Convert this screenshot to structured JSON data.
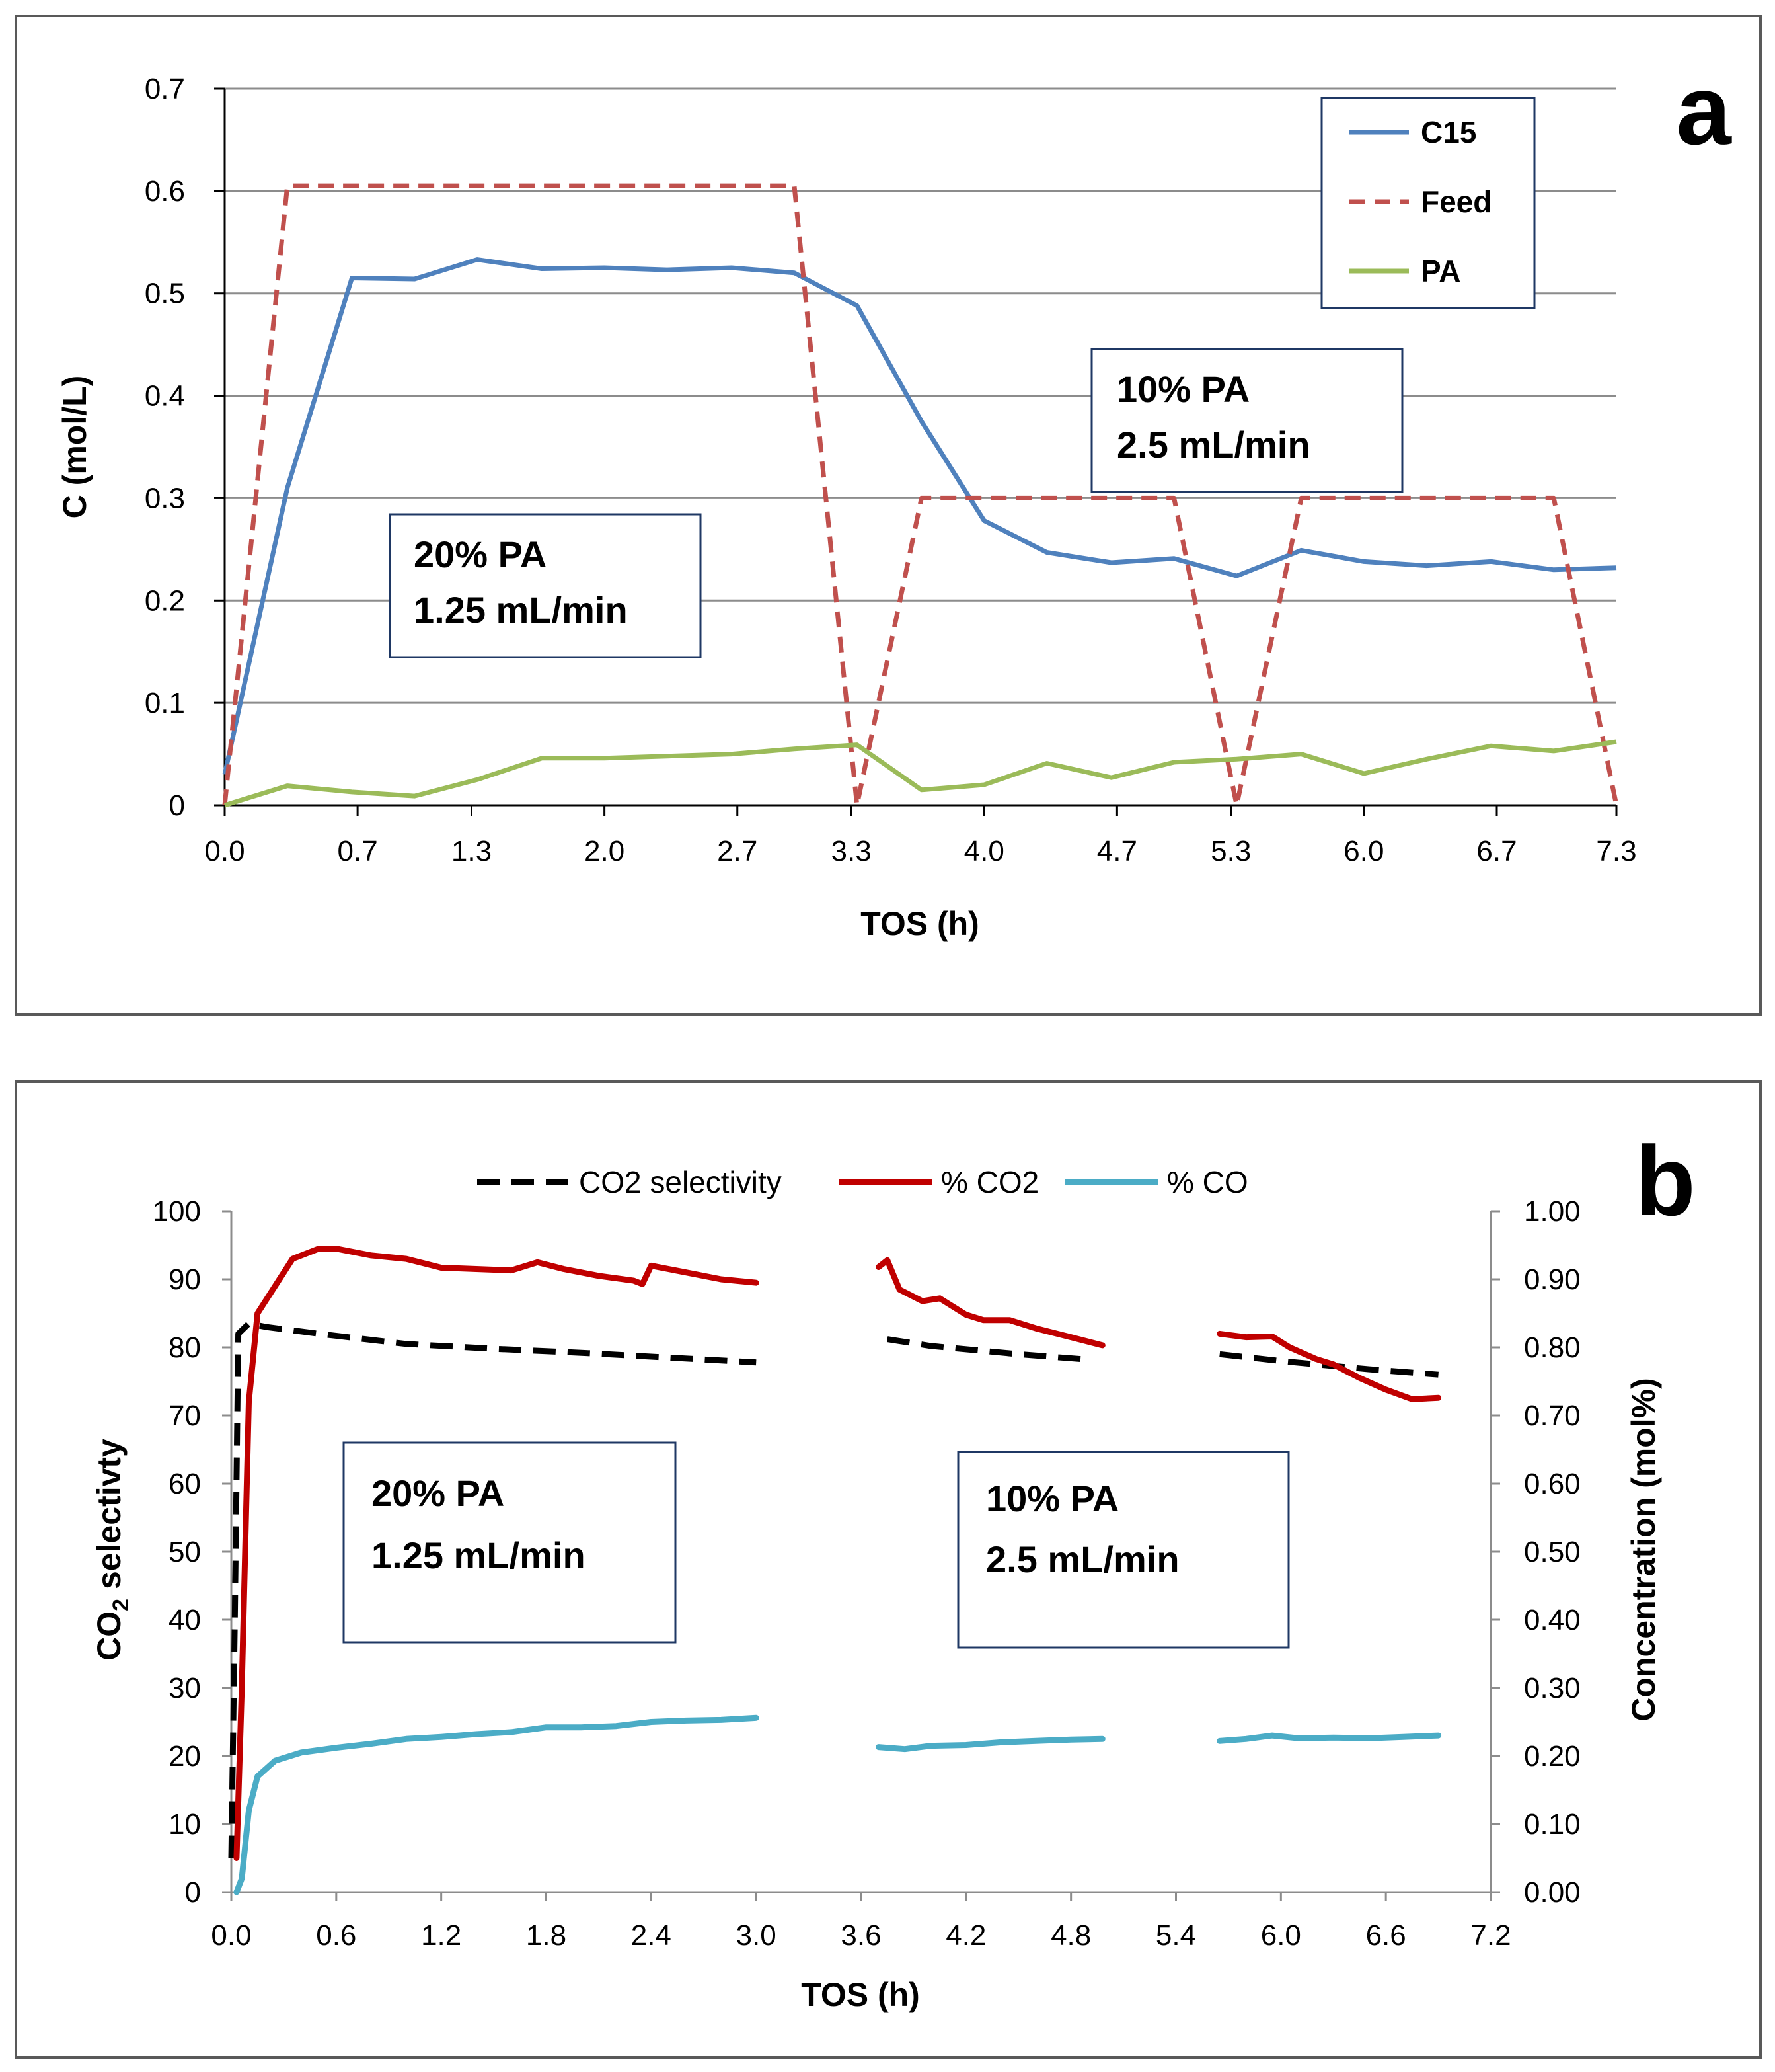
{
  "chart_data": [
    {
      "panel": "a",
      "type": "line",
      "xlabel": "TOS (h)",
      "ylabel": "C (mol/L)",
      "xlim": [
        0,
        7.33
      ],
      "ylim": [
        0,
        0.7
      ],
      "x_ticks": [
        "0.0",
        "0.7",
        "1.3",
        "2.0",
        "2.7",
        "3.3",
        "4.0",
        "4.7",
        "5.3",
        "6.0",
        "6.7",
        "7.3"
      ],
      "y_ticks": [
        "0",
        "0.1",
        "0.2",
        "0.3",
        "0.4",
        "0.5",
        "0.6",
        "0.7"
      ],
      "grid": "horizontal",
      "legend_position": "top-right",
      "series": [
        {
          "name": "C15",
          "color": "#4F81BD",
          "style": "solid",
          "points": [
            [
              0,
              0.03
            ],
            [
              0.33,
              0.31
            ],
            [
              0.67,
              0.515
            ],
            [
              1.0,
              0.514
            ],
            [
              1.33,
              0.533
            ],
            [
              1.67,
              0.524
            ],
            [
              2.0,
              0.525
            ],
            [
              2.33,
              0.523
            ],
            [
              2.67,
              0.525
            ],
            [
              3.0,
              0.52
            ],
            [
              3.33,
              0.488
            ],
            [
              3.67,
              0.375
            ],
            [
              4.0,
              0.278
            ],
            [
              4.33,
              0.247
            ],
            [
              4.67,
              0.237
            ],
            [
              5.0,
              0.241
            ],
            [
              5.33,
              0.224
            ],
            [
              5.67,
              0.249
            ],
            [
              6.0,
              0.238
            ],
            [
              6.33,
              0.234
            ],
            [
              6.67,
              0.238
            ],
            [
              7.0,
              0.23
            ],
            [
              7.33,
              0.232
            ]
          ]
        },
        {
          "name": "Feed",
          "color": "#C0504D",
          "style": "dashed",
          "points": [
            [
              0,
              0
            ],
            [
              0.33,
              0.605
            ],
            [
              3.0,
              0.605
            ],
            [
              3.33,
              0
            ],
            [
              3.67,
              0.3
            ],
            [
              5.0,
              0.3
            ],
            [
              5.33,
              0
            ],
            [
              5.67,
              0.3
            ],
            [
              7.0,
              0.3
            ],
            [
              7.33,
              0
            ]
          ]
        },
        {
          "name": "PA",
          "color": "#9BBB59",
          "style": "solid",
          "points": [
            [
              0,
              0.0
            ],
            [
              0.33,
              0.019
            ],
            [
              0.67,
              0.013
            ],
            [
              1.0,
              0.009
            ],
            [
              1.33,
              0.025
            ],
            [
              1.67,
              0.046
            ],
            [
              2.0,
              0.046
            ],
            [
              2.33,
              0.048
            ],
            [
              2.67,
              0.05
            ],
            [
              3.0,
              0.055
            ],
            [
              3.33,
              0.059
            ],
            [
              3.67,
              0.015
            ],
            [
              4.0,
              0.02
            ],
            [
              4.33,
              0.041
            ],
            [
              4.67,
              0.027
            ],
            [
              5.0,
              0.042
            ],
            [
              5.33,
              0.045
            ],
            [
              5.67,
              0.05
            ],
            [
              6.0,
              0.031
            ],
            [
              6.33,
              0.045
            ],
            [
              6.67,
              0.058
            ],
            [
              7.0,
              0.053
            ],
            [
              7.33,
              0.062
            ]
          ]
        }
      ],
      "annotations": [
        {
          "lines": [
            "20% PA",
            "1.25 mL/min"
          ]
        },
        {
          "lines": [
            "10% PA",
            "2.5 mL/min"
          ]
        }
      ]
    },
    {
      "panel": "b",
      "type": "line",
      "xlabel": "TOS (h)",
      "ylabel_left": "CO2 selectivty",
      "ylabel_right": "Concentration (mol%)",
      "xlim": [
        0,
        7.2
      ],
      "ylim_left": [
        0,
        100
      ],
      "ylim_right": [
        0,
        1.0
      ],
      "x_ticks": [
        "0.0",
        "0.6",
        "1.2",
        "1.8",
        "2.4",
        "3.0",
        "3.6",
        "4.2",
        "4.8",
        "5.4",
        "6.0",
        "6.6",
        "7.2"
      ],
      "y_ticks_left": [
        "0",
        "10",
        "20",
        "30",
        "40",
        "50",
        "60",
        "70",
        "80",
        "90",
        "100"
      ],
      "y_ticks_right": [
        "0.00",
        "0.10",
        "0.20",
        "0.30",
        "0.40",
        "0.50",
        "0.60",
        "0.70",
        "0.80",
        "0.90",
        "1.00"
      ],
      "grid": "none",
      "legend_position": "top",
      "series": [
        {
          "name": "CO2 selectivity",
          "axis": "left",
          "color": "#000000",
          "style": "dashed",
          "segments": [
            [
              [
                0.0,
                5
              ],
              [
                0.02,
                40
              ],
              [
                0.04,
                82
              ],
              [
                0.1,
                83.5
              ],
              [
                0.2,
                83
              ],
              [
                0.5,
                82
              ],
              [
                1.0,
                80.5
              ],
              [
                1.5,
                79.8
              ],
              [
                2.0,
                79.2
              ],
              [
                2.5,
                78.5
              ],
              [
                3.0,
                77.8
              ]
            ],
            [
              [
                3.75,
                81.2
              ],
              [
                4.0,
                80.2
              ],
              [
                4.5,
                79.0
              ],
              [
                4.9,
                78.2
              ]
            ],
            [
              [
                5.65,
                79.0
              ],
              [
                6.0,
                78.0
              ],
              [
                6.5,
                76.8
              ],
              [
                6.9,
                76.0
              ]
            ]
          ]
        },
        {
          "name": "% CO2",
          "axis": "right",
          "color": "#C00000",
          "style": "solid",
          "segments": [
            [
              [
                0.03,
                0.05
              ],
              [
                0.06,
                0.3
              ],
              [
                0.1,
                0.72
              ],
              [
                0.15,
                0.85
              ],
              [
                0.25,
                0.89
              ],
              [
                0.35,
                0.93
              ],
              [
                0.5,
                0.945
              ],
              [
                0.6,
                0.945
              ],
              [
                0.8,
                0.935
              ],
              [
                1.0,
                0.93
              ],
              [
                1.2,
                0.917
              ],
              [
                1.4,
                0.915
              ],
              [
                1.6,
                0.913
              ],
              [
                1.75,
                0.925
              ],
              [
                1.9,
                0.915
              ],
              [
                2.1,
                0.905
              ],
              [
                2.3,
                0.898
              ],
              [
                2.35,
                0.893
              ],
              [
                2.4,
                0.92
              ],
              [
                2.6,
                0.91
              ],
              [
                2.8,
                0.9
              ],
              [
                3.0,
                0.895
              ]
            ],
            [
              [
                3.7,
                0.918
              ],
              [
                3.75,
                0.928
              ],
              [
                3.82,
                0.885
              ],
              [
                3.95,
                0.868
              ],
              [
                4.05,
                0.872
              ],
              [
                4.2,
                0.848
              ],
              [
                4.3,
                0.84
              ],
              [
                4.45,
                0.84
              ],
              [
                4.6,
                0.828
              ],
              [
                4.8,
                0.815
              ],
              [
                4.98,
                0.803
              ]
            ],
            [
              [
                5.65,
                0.82
              ],
              [
                5.8,
                0.815
              ],
              [
                5.95,
                0.816
              ],
              [
                6.05,
                0.8
              ],
              [
                6.2,
                0.783
              ],
              [
                6.3,
                0.775
              ],
              [
                6.45,
                0.755
              ],
              [
                6.6,
                0.738
              ],
              [
                6.75,
                0.724
              ],
              [
                6.9,
                0.726
              ]
            ]
          ]
        },
        {
          "name": "% CO",
          "axis": "right",
          "color": "#4BACC6",
          "style": "solid",
          "segments": [
            [
              [
                0.03,
                0.0
              ],
              [
                0.06,
                0.02
              ],
              [
                0.1,
                0.12
              ],
              [
                0.15,
                0.17
              ],
              [
                0.25,
                0.193
              ],
              [
                0.4,
                0.205
              ],
              [
                0.6,
                0.212
              ],
              [
                0.8,
                0.218
              ],
              [
                1.0,
                0.225
              ],
              [
                1.2,
                0.228
              ],
              [
                1.4,
                0.232
              ],
              [
                1.6,
                0.235
              ],
              [
                1.8,
                0.242
              ],
              [
                2.0,
                0.242
              ],
              [
                2.2,
                0.244
              ],
              [
                2.4,
                0.25
              ],
              [
                2.6,
                0.252
              ],
              [
                2.8,
                0.253
              ],
              [
                3.0,
                0.256
              ]
            ],
            [
              [
                3.7,
                0.213
              ],
              [
                3.85,
                0.21
              ],
              [
                4.0,
                0.215
              ],
              [
                4.2,
                0.216
              ],
              [
                4.4,
                0.22
              ],
              [
                4.6,
                0.222
              ],
              [
                4.8,
                0.224
              ],
              [
                4.98,
                0.225
              ]
            ],
            [
              [
                5.65,
                0.222
              ],
              [
                5.8,
                0.225
              ],
              [
                5.95,
                0.23
              ],
              [
                6.1,
                0.226
              ],
              [
                6.3,
                0.227
              ],
              [
                6.5,
                0.226
              ],
              [
                6.7,
                0.228
              ],
              [
                6.9,
                0.23
              ]
            ]
          ]
        }
      ],
      "annotations": [
        {
          "lines": [
            "20% PA",
            "1.25 mL/min"
          ]
        },
        {
          "lines": [
            "10% PA",
            "2.5 mL/min"
          ]
        }
      ]
    }
  ],
  "panel_labels": {
    "a": "a",
    "b": "b"
  },
  "colors": {
    "frame": "#595959",
    "gridline": "#8C8C8C",
    "annotation_border": "#1F3864"
  }
}
